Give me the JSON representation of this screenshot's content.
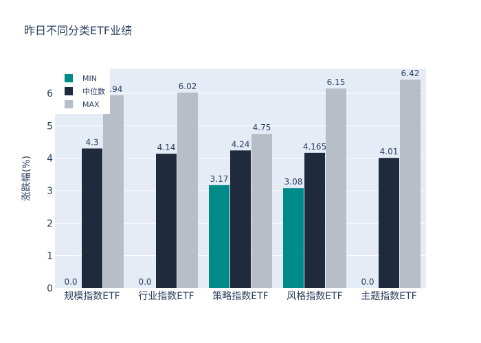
{
  "chart_data": {
    "type": "bar",
    "title": "昨日不同分类ETF业绩",
    "xlabel": "",
    "ylabel": "涨跌幅(%)",
    "categories": [
      "规模指数ETF",
      "行业指数ETF",
      "策略指数ETF",
      "风格指数ETF",
      "主题指数ETF"
    ],
    "series": [
      {
        "name": "MIN",
        "color": "#008b8b",
        "values": [
          0.0,
          0.0,
          3.17,
          3.08,
          0.0
        ],
        "labels": [
          "0.0",
          "0.0",
          "3.17",
          "3.08",
          "0.0"
        ]
      },
      {
        "name": "中位数",
        "color": "#1f2a3c",
        "values": [
          4.3,
          4.14,
          4.24,
          4.165,
          4.01
        ],
        "labels": [
          "4.3",
          "4.14",
          "4.24",
          "4.165",
          "4.01"
        ]
      },
      {
        "name": "MAX",
        "color": "#b7bec7",
        "values": [
          5.94,
          6.02,
          4.75,
          6.15,
          6.42
        ],
        "labels": [
          "5.94",
          "6.02",
          "4.75",
          "6.15",
          "6.42"
        ]
      }
    ],
    "yticks": [
      0,
      1,
      2,
      3,
      4,
      5,
      6
    ],
    "ylim": [
      0,
      6.76
    ],
    "grid": true,
    "legend_position": "top-left",
    "plot_background": "#e5ecf6"
  }
}
